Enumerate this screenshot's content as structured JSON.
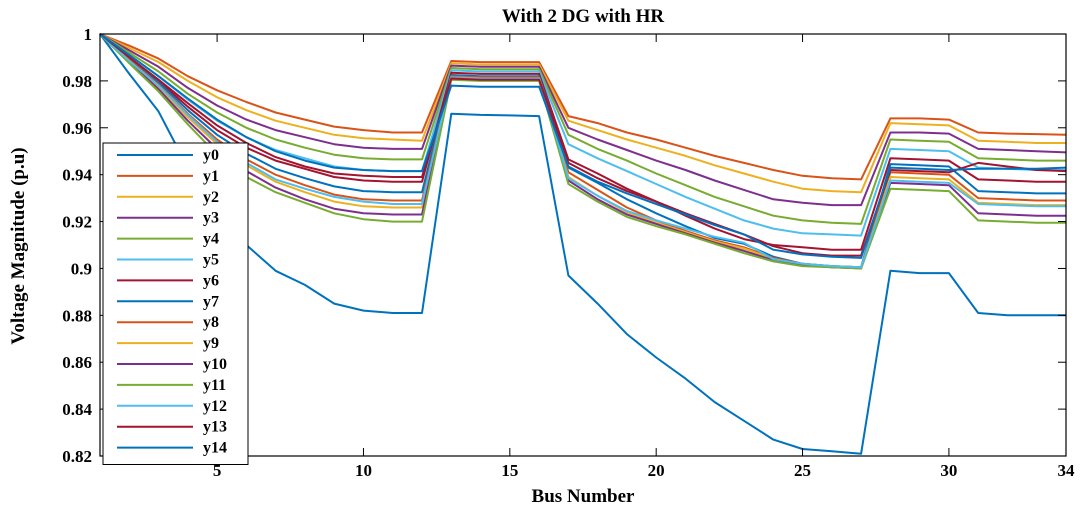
{
  "chart_data": {
    "type": "line",
    "title": "With 2 DG with HR",
    "xlabel": "Bus Number",
    "ylabel": "Voltage Magnitude (p.u)",
    "xlim": [
      1,
      34
    ],
    "ylim": [
      0.82,
      1.0
    ],
    "xticks": [
      5,
      10,
      15,
      20,
      25,
      30,
      34
    ],
    "yticks": [
      0.82,
      0.84,
      0.86,
      0.88,
      0.9,
      0.92,
      0.94,
      0.96,
      0.98,
      1
    ],
    "ytick_labels": [
      "0.82",
      "0.84",
      "0.86",
      "0.88",
      "0.9",
      "0.92",
      "0.94",
      "0.96",
      "0.98",
      "1"
    ],
    "grid": false,
    "legend_position": "left",
    "x": [
      1,
      2,
      3,
      4,
      5,
      6,
      7,
      8,
      9,
      10,
      11,
      12,
      13,
      14,
      15,
      16,
      17,
      18,
      19,
      20,
      21,
      22,
      23,
      24,
      25,
      26,
      27,
      28,
      29,
      30,
      31,
      32,
      33,
      34
    ],
    "series": [
      {
        "name": "y0",
        "color": "#0072BD",
        "values": [
          1.0,
          0.983,
          0.967,
          0.943,
          0.925,
          0.91,
          0.899,
          0.893,
          0.885,
          0.882,
          0.881,
          0.881,
          0.966,
          0.9655,
          0.9653,
          0.965,
          0.897,
          0.885,
          0.872,
          0.862,
          0.853,
          0.843,
          0.835,
          0.827,
          0.823,
          0.822,
          0.821,
          0.899,
          0.898,
          0.898,
          0.881,
          0.88,
          0.88,
          0.88
        ]
      },
      {
        "name": "y1",
        "color": "#D95319",
        "values": [
          1.0,
          0.995,
          0.9895,
          0.982,
          0.976,
          0.971,
          0.9665,
          0.9635,
          0.9605,
          0.959,
          0.958,
          0.958,
          0.9885,
          0.988,
          0.988,
          0.988,
          0.965,
          0.962,
          0.958,
          0.955,
          0.9515,
          0.948,
          0.945,
          0.942,
          0.9395,
          0.9385,
          0.938,
          0.964,
          0.964,
          0.9635,
          0.958,
          0.9575,
          0.9573,
          0.957
        ]
      },
      {
        "name": "y2",
        "color": "#EDB120",
        "values": [
          1.0,
          0.994,
          0.988,
          0.98,
          0.973,
          0.9675,
          0.963,
          0.96,
          0.957,
          0.9555,
          0.955,
          0.9545,
          0.9875,
          0.987,
          0.987,
          0.987,
          0.963,
          0.959,
          0.955,
          0.9515,
          0.948,
          0.944,
          0.9405,
          0.937,
          0.934,
          0.933,
          0.9325,
          0.962,
          0.9615,
          0.961,
          0.9545,
          0.954,
          0.9535,
          0.9535
        ]
      },
      {
        "name": "y3",
        "color": "#7E2F8E",
        "values": [
          1.0,
          0.993,
          0.986,
          0.977,
          0.9695,
          0.9635,
          0.959,
          0.956,
          0.953,
          0.9515,
          0.951,
          0.951,
          0.9865,
          0.986,
          0.986,
          0.986,
          0.96,
          0.955,
          0.9505,
          0.946,
          0.942,
          0.9375,
          0.9335,
          0.9295,
          0.928,
          0.927,
          0.927,
          0.958,
          0.958,
          0.9575,
          0.951,
          0.9505,
          0.95,
          0.9495
        ]
      },
      {
        "name": "y4",
        "color": "#77AC30",
        "values": [
          1.0,
          0.992,
          0.984,
          0.9745,
          0.9665,
          0.96,
          0.955,
          0.9515,
          0.9485,
          0.947,
          0.9465,
          0.9465,
          0.9855,
          0.985,
          0.985,
          0.985,
          0.957,
          0.951,
          0.946,
          0.9405,
          0.9355,
          0.9305,
          0.9265,
          0.9225,
          0.9205,
          0.9195,
          0.919,
          0.955,
          0.9545,
          0.954,
          0.947,
          0.9465,
          0.946,
          0.946
        ]
      },
      {
        "name": "y5",
        "color": "#4DBEEE",
        "values": [
          1.0,
          0.991,
          0.982,
          0.972,
          0.963,
          0.956,
          0.9505,
          0.947,
          0.9435,
          0.942,
          0.9415,
          0.9415,
          0.9845,
          0.984,
          0.984,
          0.984,
          0.953,
          0.947,
          0.9415,
          0.936,
          0.9305,
          0.9255,
          0.9205,
          0.917,
          0.915,
          0.9145,
          0.914,
          0.951,
          0.9505,
          0.95,
          0.943,
          0.9425,
          0.942,
          0.942
        ]
      },
      {
        "name": "y6",
        "color": "#A2142F",
        "values": [
          1.0,
          0.99,
          0.98,
          0.969,
          0.959,
          0.9515,
          0.946,
          0.9425,
          0.939,
          0.9375,
          0.937,
          0.937,
          0.9835,
          0.983,
          0.983,
          0.983,
          0.9465,
          0.9405,
          0.934,
          0.9285,
          0.9225,
          0.917,
          0.9125,
          0.91,
          0.909,
          0.908,
          0.908,
          0.947,
          0.9465,
          0.946,
          0.938,
          0.9375,
          0.937,
          0.937
        ]
      },
      {
        "name": "y7",
        "color": "#0072BD",
        "values": [
          1.0,
          0.9895,
          0.9795,
          0.9675,
          0.957,
          0.949,
          0.9425,
          0.9385,
          0.935,
          0.933,
          0.9325,
          0.9325,
          0.9825,
          0.982,
          0.982,
          0.982,
          0.943,
          0.9365,
          0.9295,
          0.9235,
          0.918,
          0.913,
          0.9105,
          0.905,
          0.902,
          0.901,
          0.9005,
          0.9445,
          0.944,
          0.9435,
          0.933,
          0.9325,
          0.932,
          0.932
        ]
      },
      {
        "name": "y8",
        "color": "#D95319",
        "values": [
          1.0,
          0.989,
          0.9785,
          0.966,
          0.955,
          0.9465,
          0.94,
          0.9355,
          0.9315,
          0.9295,
          0.929,
          0.929,
          0.982,
          0.9815,
          0.9815,
          0.9815,
          0.941,
          0.9335,
          0.926,
          0.9205,
          0.916,
          0.912,
          0.909,
          0.9045,
          0.902,
          0.901,
          0.9005,
          0.941,
          0.9405,
          0.94,
          0.93,
          0.9295,
          0.929,
          0.929
        ]
      },
      {
        "name": "y9",
        "color": "#EDB120",
        "values": [
          1.0,
          0.9885,
          0.9775,
          0.9645,
          0.953,
          0.944,
          0.937,
          0.9325,
          0.9285,
          0.9265,
          0.926,
          0.926,
          0.9815,
          0.981,
          0.981,
          0.981,
          0.939,
          0.931,
          0.924,
          0.9195,
          0.9155,
          0.9115,
          0.9085,
          0.904,
          0.9015,
          0.9005,
          0.9,
          0.939,
          0.9385,
          0.938,
          0.928,
          0.9275,
          0.927,
          0.927
        ]
      },
      {
        "name": "y10",
        "color": "#7E2F8E",
        "values": [
          1.0,
          0.988,
          0.9765,
          0.963,
          0.951,
          0.9415,
          0.9345,
          0.9295,
          0.9255,
          0.9235,
          0.923,
          0.923,
          0.981,
          0.9805,
          0.9805,
          0.9805,
          0.9375,
          0.9295,
          0.923,
          0.919,
          0.915,
          0.911,
          0.9075,
          0.9035,
          0.9015,
          0.9005,
          0.9,
          0.9365,
          0.936,
          0.9355,
          0.9235,
          0.923,
          0.9225,
          0.9225
        ]
      },
      {
        "name": "y11",
        "color": "#77AC30",
        "values": [
          1.0,
          0.9875,
          0.9755,
          0.9615,
          0.9485,
          0.939,
          0.9325,
          0.928,
          0.9235,
          0.921,
          0.92,
          0.92,
          0.9805,
          0.98,
          0.98,
          0.98,
          0.936,
          0.9285,
          0.922,
          0.918,
          0.9145,
          0.9105,
          0.9065,
          0.903,
          0.901,
          0.9005,
          0.9,
          0.934,
          0.9335,
          0.933,
          0.9205,
          0.92,
          0.9195,
          0.9195
        ]
      },
      {
        "name": "y12",
        "color": "#4DBEEE",
        "values": [
          1.0,
          0.9885,
          0.978,
          0.9655,
          0.954,
          0.945,
          0.938,
          0.934,
          0.9305,
          0.9285,
          0.9275,
          0.9275,
          0.9815,
          0.981,
          0.981,
          0.981,
          0.9385,
          0.931,
          0.9245,
          0.9205,
          0.917,
          0.9135,
          0.911,
          0.904,
          0.902,
          0.901,
          0.9005,
          0.9375,
          0.937,
          0.9365,
          0.9275,
          0.927,
          0.9265,
          0.9265
        ]
      },
      {
        "name": "y13",
        "color": "#A2142F",
        "values": [
          1.0,
          0.99,
          0.9805,
          0.9705,
          0.961,
          0.9535,
          0.9475,
          0.9435,
          0.9405,
          0.9395,
          0.939,
          0.939,
          0.981,
          0.9805,
          0.9805,
          0.9805,
          0.945,
          0.9385,
          0.933,
          0.9285,
          0.9235,
          0.919,
          0.9145,
          0.9095,
          0.9065,
          0.9055,
          0.9055,
          0.942,
          0.9415,
          0.941,
          0.945,
          0.9435,
          0.942,
          0.9415
        ]
      },
      {
        "name": "y14",
        "color": "#0072BD",
        "values": [
          1.0,
          0.991,
          0.982,
          0.9725,
          0.9635,
          0.956,
          0.95,
          0.946,
          0.943,
          0.942,
          0.9415,
          0.9415,
          0.978,
          0.9775,
          0.9775,
          0.9775,
          0.9435,
          0.937,
          0.932,
          0.9275,
          0.923,
          0.9185,
          0.9145,
          0.908,
          0.906,
          0.905,
          0.9045,
          0.943,
          0.9425,
          0.942,
          0.9425,
          0.9425,
          0.9425,
          0.943
        ]
      }
    ]
  }
}
